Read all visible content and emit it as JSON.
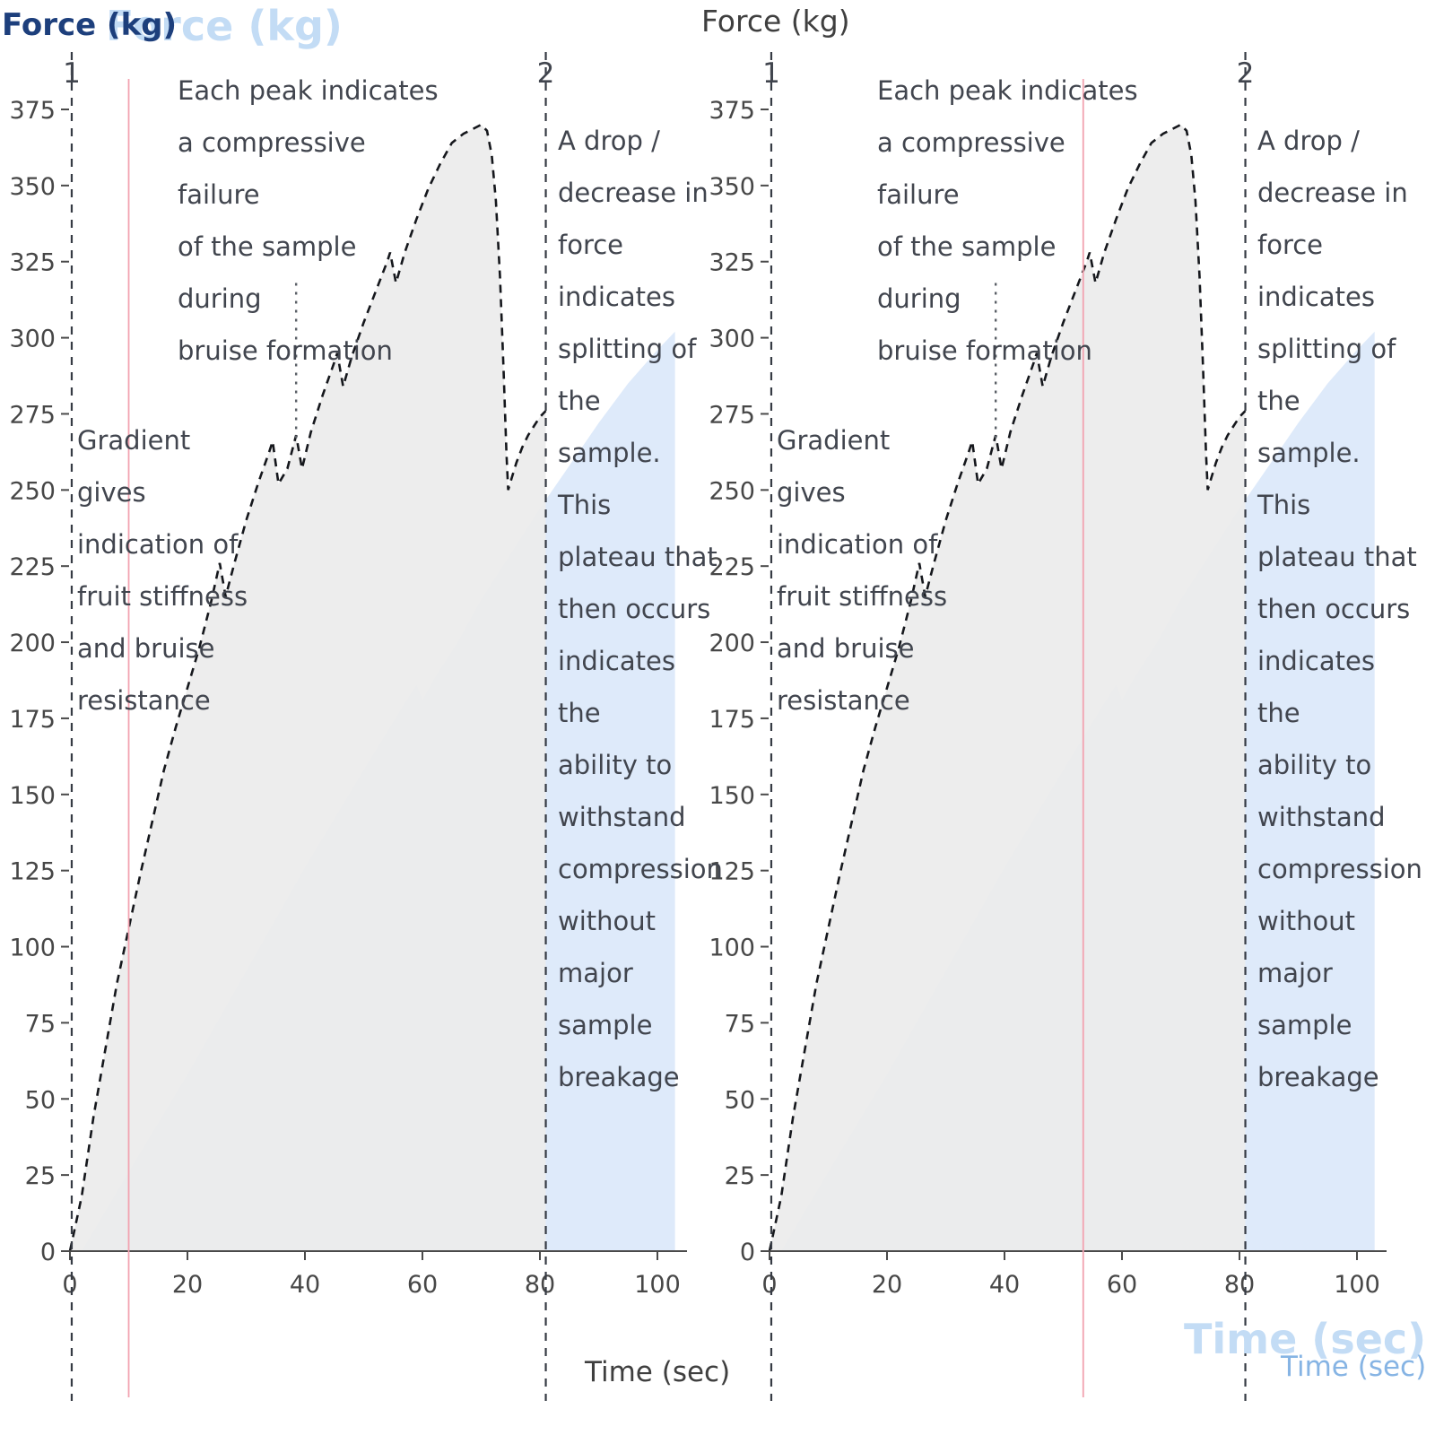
{
  "titles": {
    "force_label": "Force (kg)",
    "time_label": "Time (sec)"
  },
  "annotations": {
    "marker_1": "1",
    "marker_2": "2",
    "peak": "Each peak indicates\na compressive failure\nof the sample during\nbruise formation",
    "gradient": "Gradient gives\nindication of\nfruit stiffness\nand bruise\nresistance",
    "drop": "A drop /\ndecrease in\nforce indicates\nsplitting of the\nsample. This\nplateau that\nthen occurs\nindicates the\nability to\nwithstand\ncompression\nwithout major\nsample\nbreakage"
  },
  "chart_data": {
    "type": "area",
    "title": "",
    "xlabel": "Time (sec)",
    "ylabel": "Force (kg)",
    "x_axis": {
      "ticks": [
        0,
        20,
        40,
        60,
        80,
        100
      ],
      "range": [
        0,
        105
      ],
      "grid": false
    },
    "y_axis": {
      "ticks": [
        0,
        25,
        50,
        75,
        100,
        125,
        150,
        175,
        200,
        225,
        250,
        275,
        300,
        325,
        350,
        375
      ],
      "range": [
        0,
        385
      ],
      "grid": false
    },
    "markers": [
      {
        "label": "1",
        "x": 0.3
      },
      {
        "label": "2",
        "x": 81
      }
    ],
    "leader_line": {
      "x": 38.5,
      "force_from": 318,
      "force_to": 266
    },
    "charts": [
      {
        "name": "left",
        "red_line_x": 10
      },
      {
        "name": "right",
        "red_line_x": 53.4
      }
    ],
    "series": [
      {
        "name": "compression force",
        "line": "dashed-black",
        "fill": "gray",
        "points": [
          [
            0,
            0
          ],
          [
            2,
            18
          ],
          [
            4,
            44
          ],
          [
            6,
            66
          ],
          [
            8,
            88
          ],
          [
            10,
            106
          ],
          [
            12,
            124
          ],
          [
            14,
            141
          ],
          [
            16,
            158
          ],
          [
            18,
            172
          ],
          [
            20,
            185
          ],
          [
            22,
            198
          ],
          [
            24,
            213
          ],
          [
            25.5,
            226
          ],
          [
            26.5,
            215
          ],
          [
            28,
            226
          ],
          [
            30,
            240
          ],
          [
            32,
            252
          ],
          [
            34,
            263
          ],
          [
            34.5,
            266
          ],
          [
            35.5,
            252
          ],
          [
            37,
            257
          ],
          [
            38.5,
            268
          ],
          [
            39.5,
            257
          ],
          [
            41,
            269
          ],
          [
            43,
            281
          ],
          [
            45,
            292
          ],
          [
            45.5,
            295
          ],
          [
            46.5,
            284
          ],
          [
            48,
            294
          ],
          [
            50,
            305
          ],
          [
            52,
            315
          ],
          [
            54,
            325
          ],
          [
            54.5,
            328
          ],
          [
            55.5,
            318
          ],
          [
            57,
            328
          ],
          [
            59,
            339
          ],
          [
            61,
            349
          ],
          [
            63,
            357
          ],
          [
            65,
            364
          ],
          [
            67,
            367
          ],
          [
            69,
            369
          ],
          [
            70,
            370
          ],
          [
            71,
            368
          ],
          [
            71.8,
            360
          ],
          [
            72.5,
            345
          ],
          [
            73.2,
            320
          ],
          [
            73.8,
            290
          ],
          [
            74.3,
            262
          ],
          [
            74.6,
            250
          ],
          [
            75.2,
            254
          ],
          [
            76,
            259
          ],
          [
            77,
            264
          ],
          [
            78,
            268
          ],
          [
            79,
            271
          ],
          [
            80,
            274
          ],
          [
            81,
            276
          ]
        ]
      },
      {
        "name": "secondary force trace",
        "line": "none",
        "fill": "blue",
        "points": [
          [
            2,
            0
          ],
          [
            10,
            26
          ],
          [
            20,
            58
          ],
          [
            30,
            92
          ],
          [
            40,
            126
          ],
          [
            50,
            158
          ],
          [
            57,
            180
          ],
          [
            59,
            186
          ],
          [
            60,
            181
          ],
          [
            62,
            188
          ],
          [
            66,
            200
          ],
          [
            70,
            214
          ],
          [
            75,
            229
          ],
          [
            80,
            244
          ],
          [
            85,
            258
          ],
          [
            90,
            272
          ],
          [
            95,
            285
          ],
          [
            100,
            296
          ],
          [
            103,
            302
          ]
        ]
      }
    ],
    "colors": {
      "curve_stroke": "#15171c",
      "gray_fill": "#ececec",
      "blue_fill": "#dce9fa",
      "marker_line": "#363b44",
      "red_line": "#f2a2b0",
      "axis_line": "#4a4a4a",
      "tick_label": "#474747",
      "annotation_text": "#41454e"
    }
  }
}
